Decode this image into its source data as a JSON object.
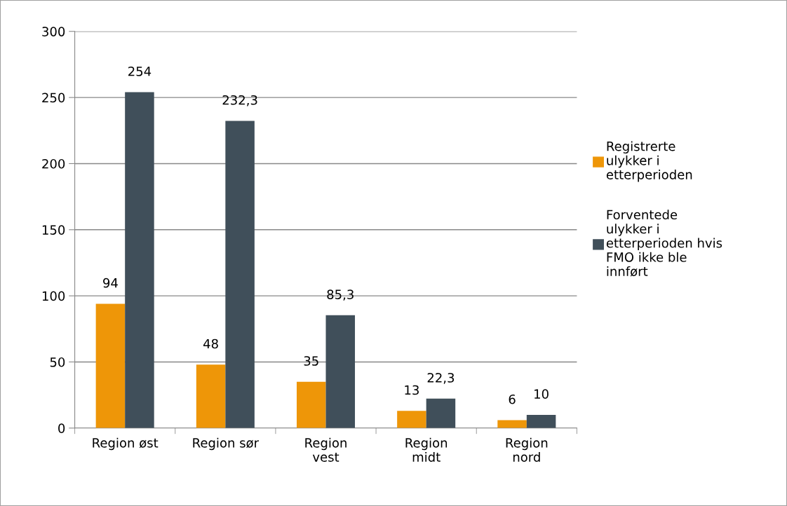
{
  "chart_data": {
    "type": "bar",
    "categories": [
      "Region øst",
      "Region sør",
      "Region\nvest",
      "Region\nmidt",
      "Region\nnord"
    ],
    "series": [
      {
        "name": "Registrerte\nulykker i\netterperioden",
        "color": "#ee9608",
        "values": [
          94,
          48,
          35,
          13,
          6
        ],
        "value_labels": [
          "94",
          "48",
          "35",
          "13",
          "6"
        ]
      },
      {
        "name": "Forventede\nulykker i\netterperioden hvis\nFMO ikke ble\ninnført",
        "color": "#404f5a",
        "values": [
          254,
          232.3,
          85.3,
          22.3,
          10
        ],
        "value_labels": [
          "254",
          "232,3",
          "85,3",
          "22,3",
          "10"
        ]
      }
    ],
    "ylim": [
      0,
      300
    ],
    "yticks": [
      0,
      50,
      100,
      150,
      200,
      250,
      300
    ],
    "grid": "y",
    "legend": "right"
  }
}
